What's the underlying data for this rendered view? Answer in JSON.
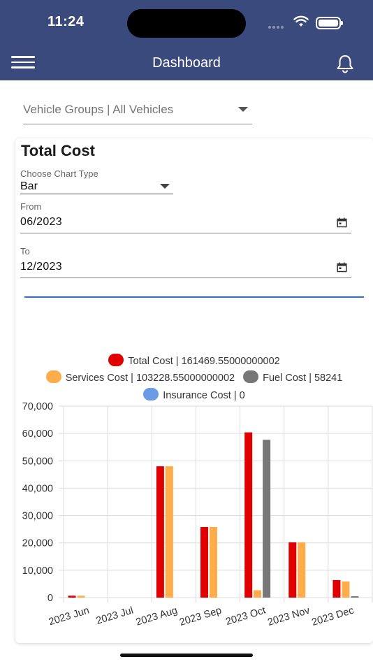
{
  "status_bar": {
    "time": "11:24"
  },
  "header": {
    "title": "Dashboard",
    "menu_icon": "hamburger-menu-icon",
    "notification_icon": "bell-icon"
  },
  "filters": {
    "vehicle_group": "Vehicle Groups | All Vehicles"
  },
  "card": {
    "title": "Total Cost",
    "chart_type_label": "Choose Chart Type",
    "chart_type_value": "Bar",
    "from_label": "From",
    "from_value": "06/2023",
    "to_label": "To",
    "to_value": "12/2023"
  },
  "legend": [
    {
      "text": "Total Cost | 161469.55000000002",
      "color": "#e00000"
    },
    {
      "text": "Services Cost | 103228.55000000002",
      "color": "#ffad4a"
    },
    {
      "text": "Fuel Cost | 58241",
      "color": "#777777"
    },
    {
      "text": "Insurance Cost | 0",
      "color": "#6b9be6"
    }
  ],
  "chart_data": {
    "type": "bar",
    "categories": [
      "2023 Jun",
      "2023 Jul",
      "2023 Aug",
      "2023 Sep",
      "2023 Oct",
      "2023 Nov",
      "2023 Dec"
    ],
    "series": [
      {
        "name": "Total Cost",
        "color": "#e00000",
        "values": [
          700,
          0,
          48000,
          25800,
          60400,
          20200,
          6400
        ]
      },
      {
        "name": "Services Cost",
        "color": "#ffad4a",
        "values": [
          700,
          0,
          48000,
          25800,
          2700,
          20200,
          5900
        ]
      },
      {
        "name": "Fuel Cost",
        "color": "#777777",
        "values": [
          0,
          0,
          0,
          0,
          57700,
          0,
          500
        ]
      },
      {
        "name": "Insurance Cost",
        "color": "#6b9be6",
        "values": [
          0,
          0,
          0,
          0,
          0,
          0,
          0
        ]
      }
    ],
    "y_ticks": [
      "70,000",
      "60,000",
      "50,000",
      "40,000",
      "30,000",
      "20,000",
      "10,000",
      "0"
    ],
    "ylim": [
      0,
      70000
    ],
    "grid": true
  }
}
